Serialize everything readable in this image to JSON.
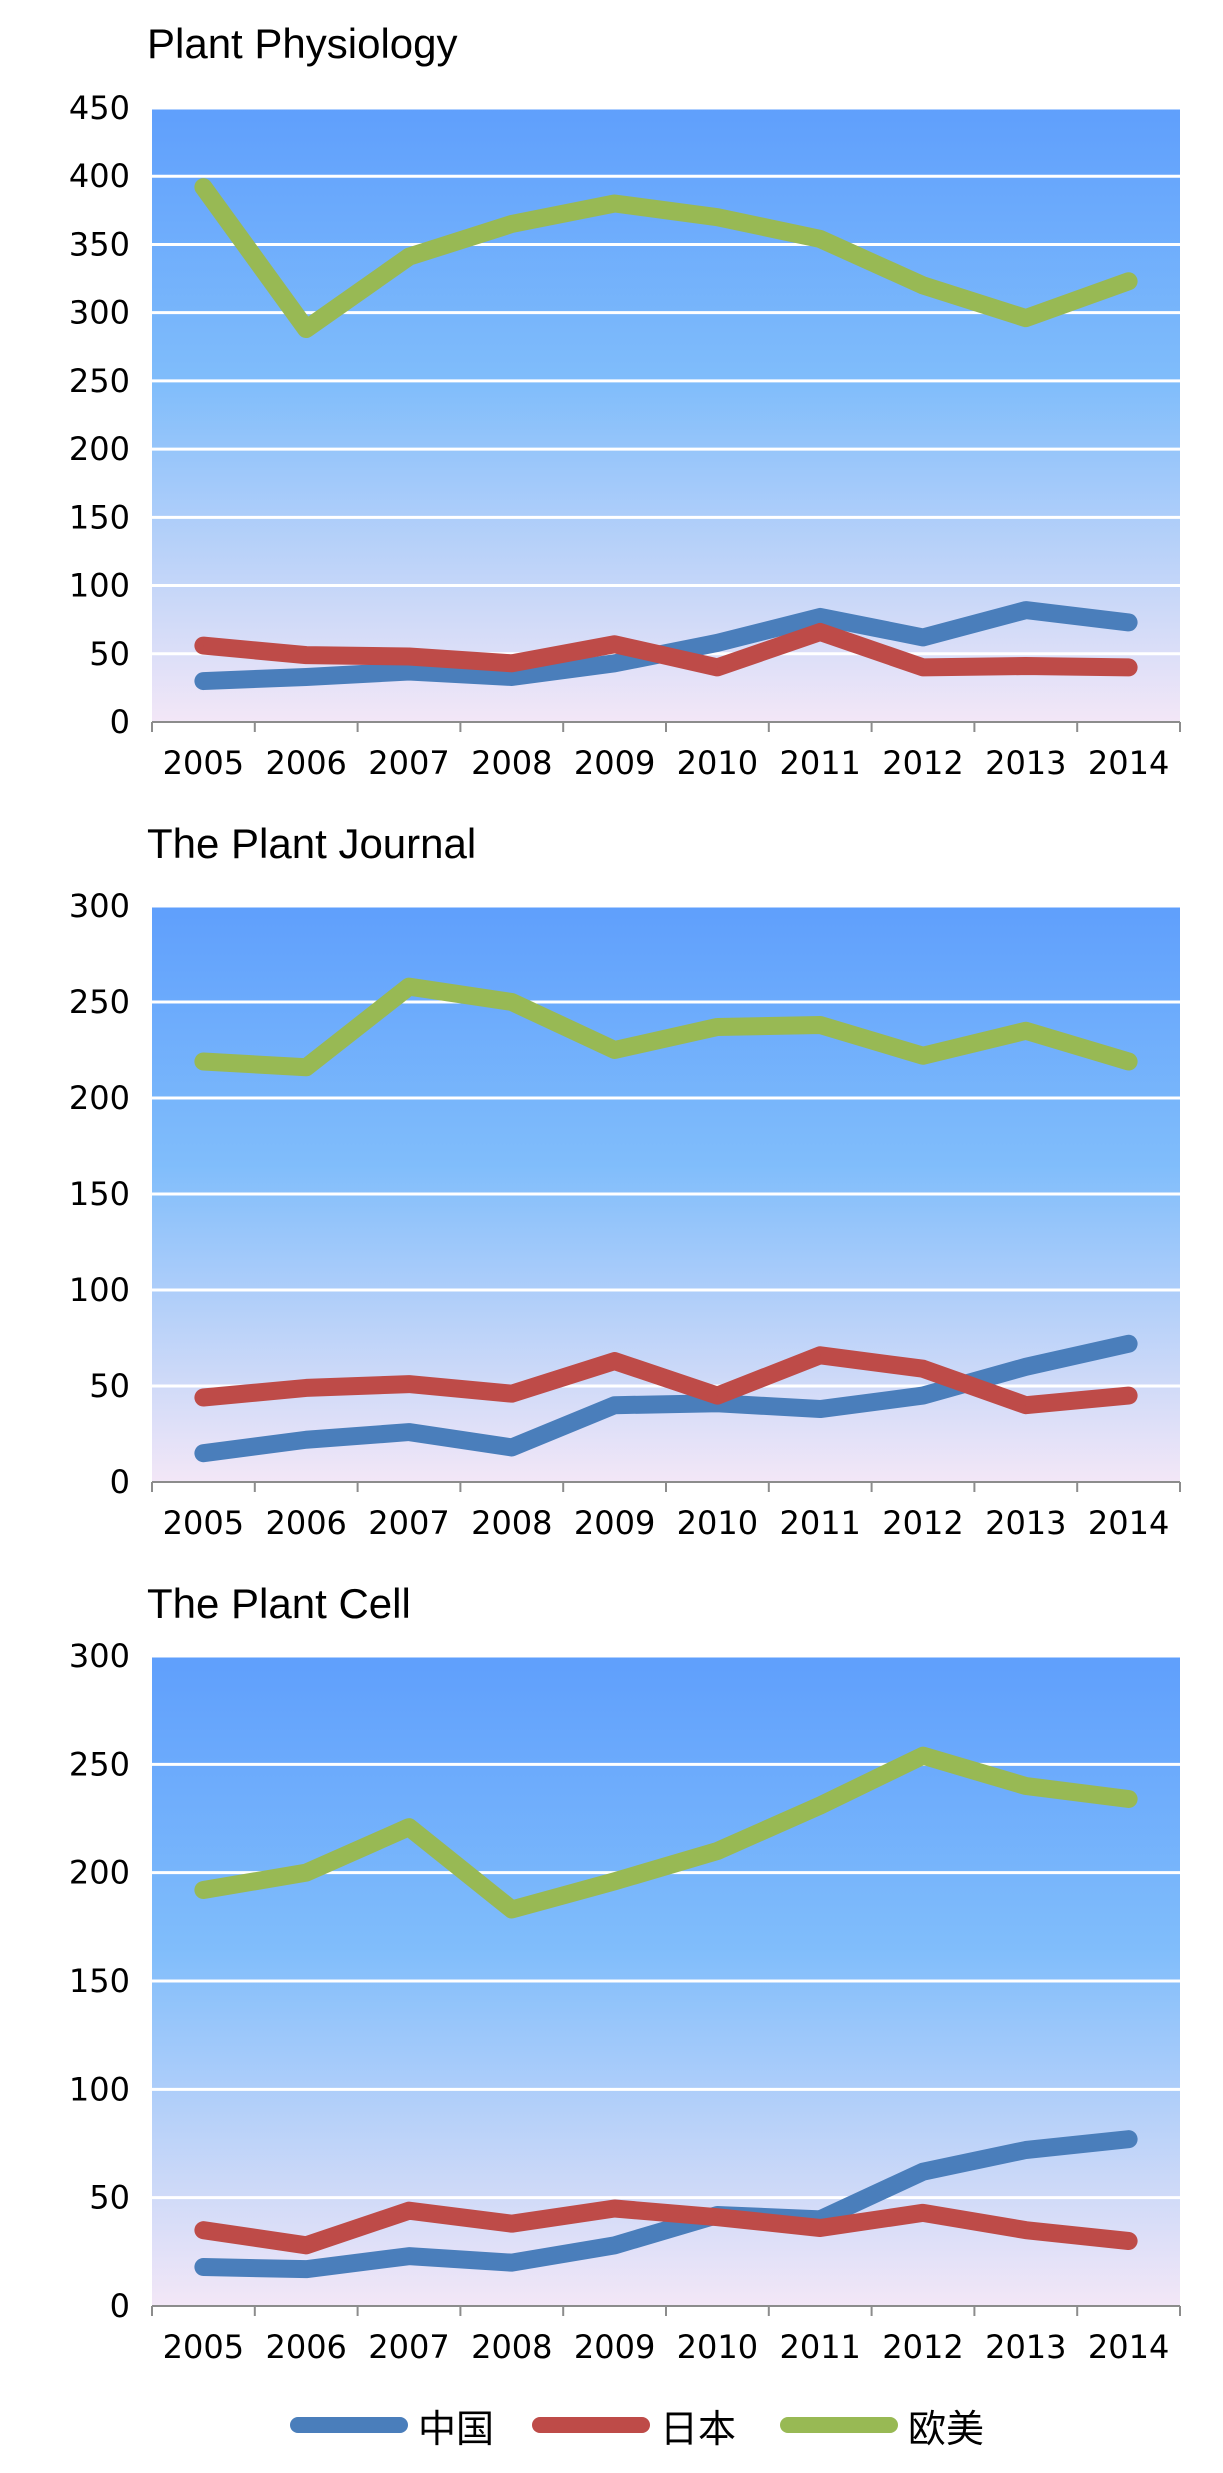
{
  "colors": {
    "china": "#4a7ebb",
    "japan": "#be4b48",
    "euro_us": "#98b954",
    "bg_top": "#5f9ffc",
    "bg_mid": "#80bdfb",
    "bg_bottom": "#f3e7f7",
    "gridline": "#ffffff"
  },
  "legend": [
    {
      "name": "中国",
      "color": "#4a7ebb"
    },
    {
      "name": "日本",
      "color": "#be4b48"
    },
    {
      "name": "欧美",
      "color": "#98b954"
    }
  ],
  "chart_data": [
    {
      "type": "line",
      "title": "Plant Physiology",
      "xlabel": "",
      "ylabel": "",
      "categories": [
        "2005",
        "2006",
        "2007",
        "2008",
        "2009",
        "2010",
        "2011",
        "2012",
        "2013",
        "2014"
      ],
      "ylim": [
        0,
        450
      ],
      "yticks": [
        0,
        50,
        100,
        150,
        200,
        250,
        300,
        350,
        400,
        450
      ],
      "grid": true,
      "series": [
        {
          "name": "中国",
          "values": [
            30,
            33,
            37,
            33,
            43,
            58,
            77,
            62,
            82,
            73
          ]
        },
        {
          "name": "日本",
          "values": [
            56,
            49,
            48,
            43,
            57,
            40,
            66,
            40,
            41,
            40
          ]
        },
        {
          "name": "欧美",
          "values": [
            392,
            288,
            341,
            365,
            380,
            370,
            354,
            320,
            296,
            323
          ]
        }
      ]
    },
    {
      "type": "line",
      "title": "The Plant Journal",
      "xlabel": "",
      "ylabel": "",
      "categories": [
        "2005",
        "2006",
        "2007",
        "2008",
        "2009",
        "2010",
        "2011",
        "2012",
        "2013",
        "2014"
      ],
      "ylim": [
        0,
        300
      ],
      "yticks": [
        0,
        50,
        100,
        150,
        200,
        250,
        300
      ],
      "grid": true,
      "series": [
        {
          "name": "中国",
          "values": [
            15,
            22,
            26,
            18,
            40,
            41,
            38,
            45,
            60,
            72
          ]
        },
        {
          "name": "日本",
          "values": [
            44,
            49,
            51,
            46,
            63,
            45,
            66,
            59,
            40,
            45
          ]
        },
        {
          "name": "欧美",
          "values": [
            219,
            216,
            258,
            250,
            225,
            237,
            238,
            222,
            235,
            219
          ]
        }
      ]
    },
    {
      "type": "line",
      "title": "The Plant Cell",
      "xlabel": "",
      "ylabel": "",
      "categories": [
        "2005",
        "2006",
        "2007",
        "2008",
        "2009",
        "2010",
        "2011",
        "2012",
        "2013",
        "2014"
      ],
      "ylim": [
        0,
        300
      ],
      "yticks": [
        0,
        50,
        100,
        150,
        200,
        250,
        300
      ],
      "grid": true,
      "series": [
        {
          "name": "中国",
          "values": [
            18,
            17,
            23,
            20,
            28,
            42,
            40,
            62,
            72,
            77
          ]
        },
        {
          "name": "日本",
          "values": [
            35,
            28,
            44,
            38,
            45,
            41,
            36,
            43,
            35,
            30
          ]
        },
        {
          "name": "欧美",
          "values": [
            192,
            200,
            221,
            183,
            196,
            210,
            231,
            254,
            240,
            234
          ]
        }
      ]
    }
  ]
}
